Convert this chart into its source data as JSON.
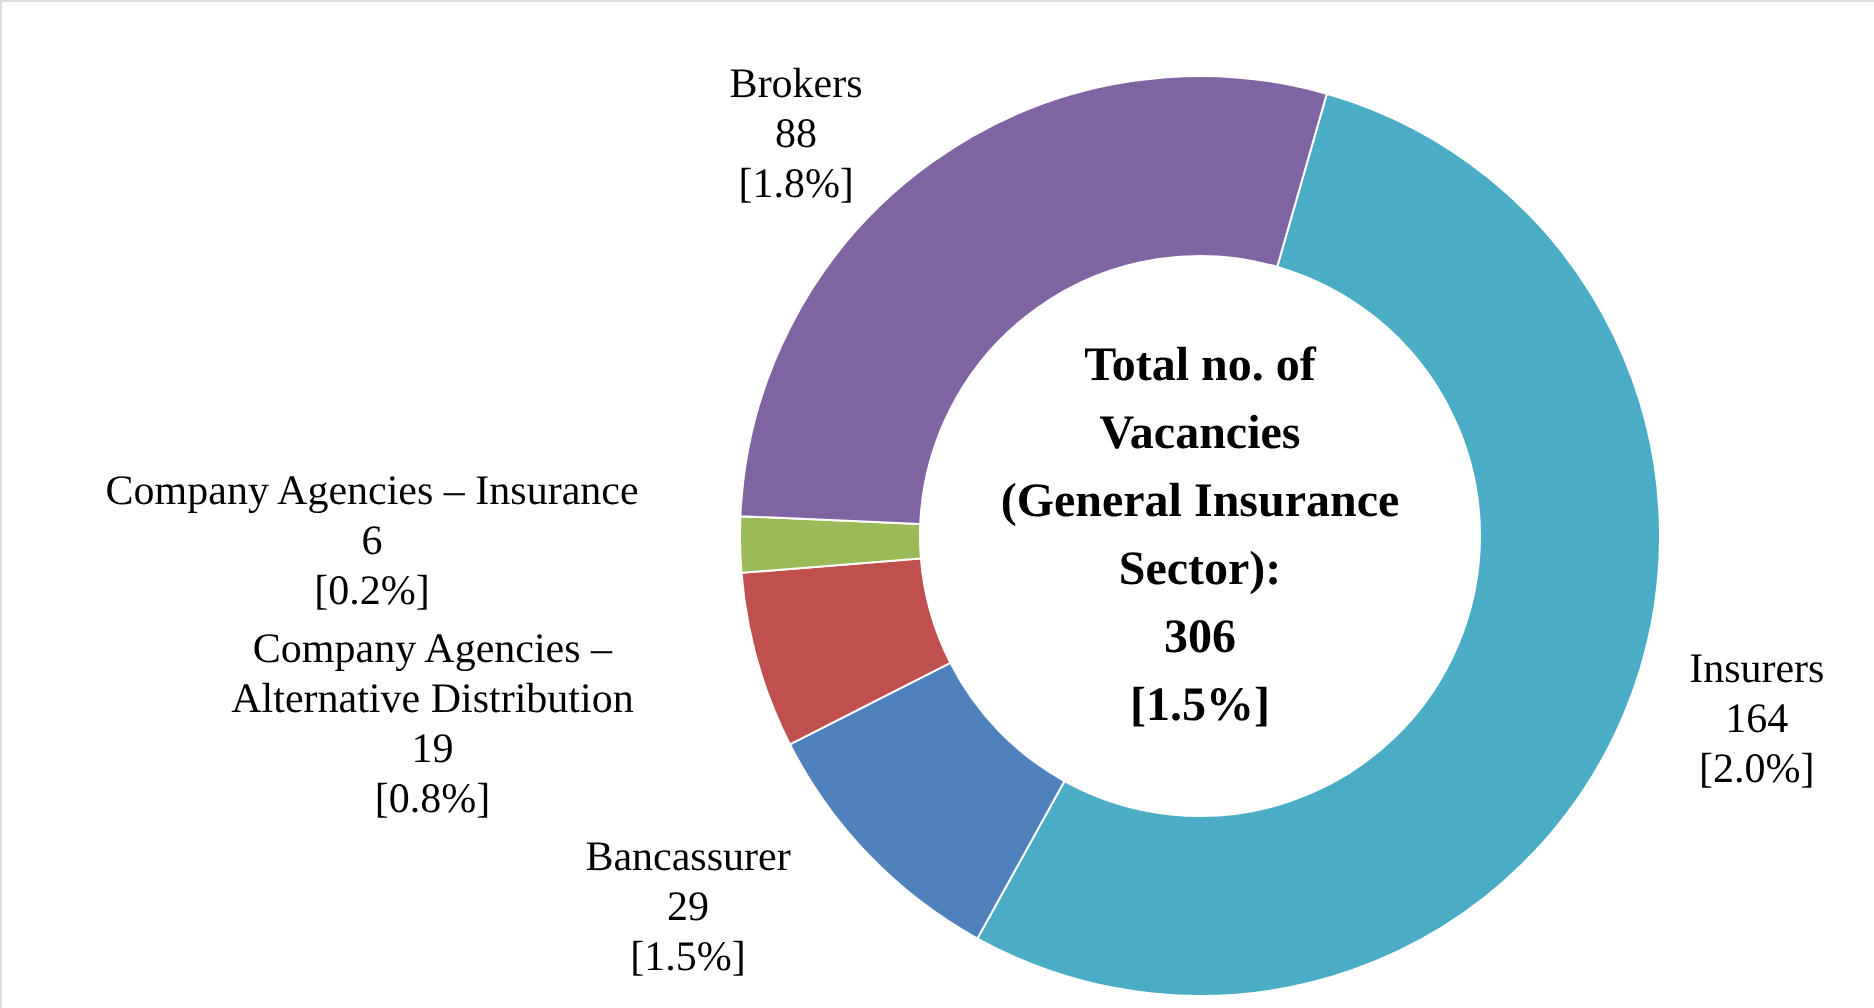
{
  "chart_data": {
    "type": "donut",
    "title": "Total no. of\nVacancies\n(General Insurance\nSector):",
    "annotations": [
      "306",
      "[1.5%]"
    ],
    "categories": [
      "Insurers",
      "Bancassurer",
      "Company Agencies – Alternative Distribution",
      "Company Agencies – Insurance",
      "Brokers"
    ],
    "values": [
      164,
      29,
      19,
      6,
      88
    ],
    "value_labels": [
      "164 [2.0%]",
      "29 [1.5%]",
      "19 [0.8%]",
      "6 [0.2%]",
      "88 [1.8%]"
    ],
    "colors": [
      "#4bacc6",
      "#4f81bd",
      "#c0504d",
      "#9bbb59",
      "#8064a2"
    ]
  }
}
